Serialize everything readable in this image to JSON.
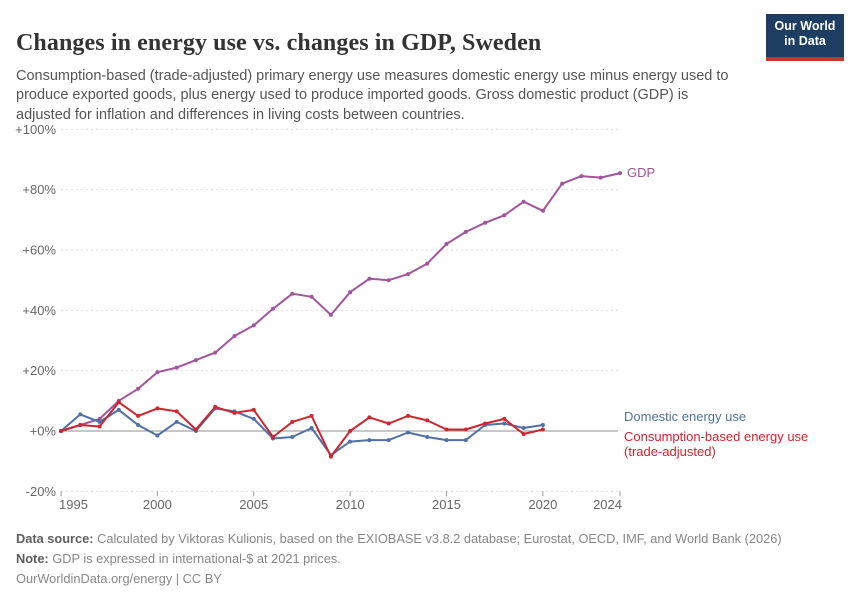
{
  "header": {
    "title": "Changes in energy use vs. changes in GDP, Sweden",
    "subtitle": "Consumption-based (trade-adjusted) primary energy use measures domestic energy use minus energy used to produce exported goods, plus energy used to produce imported goods. Gross domestic product (GDP) is adjusted for inflation and differences in living costs between countries.",
    "logo": {
      "line1": "Our World",
      "line2": "in Data",
      "bg_color": "#1d3d63",
      "bar_color": "#c0392b"
    }
  },
  "chart_data": {
    "type": "line",
    "title": "Changes in energy use vs. changes in GDP, Sweden",
    "xlabel": "",
    "ylabel": "",
    "xlim": [
      1995,
      2024
    ],
    "ylim": [
      -20,
      100
    ],
    "grid": "horizontal-dashed",
    "legend_position": "right-end-labels",
    "yticks": [
      {
        "value": 100,
        "label": "+100%"
      },
      {
        "value": 80,
        "label": "+80%"
      },
      {
        "value": 60,
        "label": "+60%"
      },
      {
        "value": 40,
        "label": "+40%"
      },
      {
        "value": 20,
        "label": "+20%"
      },
      {
        "value": 0,
        "label": "+0%"
      },
      {
        "value": -20,
        "label": "-20%"
      }
    ],
    "xticks": [
      {
        "value": 1995,
        "label": "1995"
      },
      {
        "value": 2000,
        "label": "2000"
      },
      {
        "value": 2005,
        "label": "2005"
      },
      {
        "value": 2010,
        "label": "2010"
      },
      {
        "value": 2015,
        "label": "2015"
      },
      {
        "value": 2020,
        "label": "2020"
      },
      {
        "value": 2024,
        "label": "2024"
      }
    ],
    "series": [
      {
        "name": "GDP",
        "color": "#a2559c",
        "start_year": 1995,
        "label_lines": [
          "GDP"
        ],
        "values": [
          0,
          2,
          4,
          10,
          14,
          19.5,
          21,
          23.5,
          26,
          31.5,
          35,
          40.5,
          45.5,
          44.5,
          38.5,
          46,
          50.5,
          50,
          52,
          55.5,
          62,
          66,
          69,
          71.5,
          76,
          73,
          82,
          84.5,
          84,
          85.5
        ]
      },
      {
        "name": "Domestic energy use",
        "color": "#4f71a6",
        "start_year": 1995,
        "label_lines": [
          "Domestic energy use"
        ],
        "values": [
          0,
          5.5,
          3,
          7,
          2,
          -1.5,
          3,
          0,
          7.5,
          6.5,
          4,
          -2.5,
          -2,
          1,
          -8,
          -3.5,
          -3,
          -3,
          -0.5,
          -2,
          -3,
          -3,
          2,
          2.5,
          1,
          2
        ]
      },
      {
        "name": "Consumption-based energy use (trade-adjusted)",
        "color": "#d0242e",
        "start_year": 1995,
        "label_lines": [
          "Consumption-based energy use",
          "(trade-adjusted)"
        ],
        "values": [
          0,
          2,
          1.5,
          9.5,
          5,
          7.5,
          6.5,
          0.5,
          8,
          6,
          7,
          -2,
          3,
          5,
          -8.5,
          0,
          4.5,
          2.5,
          5,
          3.5,
          0.5,
          0.5,
          2.5,
          4,
          -1,
          0.5
        ]
      }
    ],
    "style_colors": {
      "gridline": "#dedede",
      "zero_line": "#8f8f8f",
      "tick_mark": "#999999",
      "axis_label": "#666666"
    }
  },
  "footer": {
    "data_source_label": "Data source:",
    "data_source": "Calculated by Viktoras Kulionis, based on the EXIOBASE v3.8.2 database; Eurostat, OECD, IMF, and World Bank (2026)",
    "note_label": "Note:",
    "note": "GDP is expressed in international-$ at 2021 prices.",
    "link": "OurWorldinData.org/energy | CC BY"
  }
}
